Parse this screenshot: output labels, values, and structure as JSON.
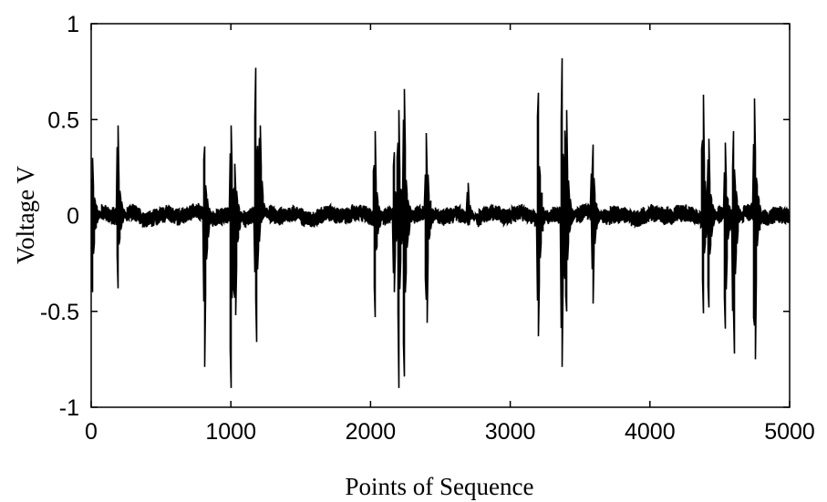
{
  "chart_data": {
    "type": "line",
    "title": "",
    "xlabel": "Points of Sequence",
    "ylabel": "Voltage V",
    "xlim": [
      0,
      5000
    ],
    "ylim": [
      -1,
      1
    ],
    "xticks": [
      0,
      1000,
      2000,
      3000,
      4000,
      5000
    ],
    "yticks": [
      -1,
      -0.5,
      0,
      0.5,
      1
    ],
    "xtick_labels": [
      "0",
      "1000",
      "2000",
      "3000",
      "4000",
      "5000"
    ],
    "ytick_labels": [
      "-1",
      "-0.5",
      "0",
      "0.5",
      "1"
    ],
    "grid": false,
    "noise_amplitude": 0.05,
    "series": [
      {
        "color": "#000000",
        "bursts": [
          {
            "x": 10,
            "peak": 0.3,
            "trough": -0.4
          },
          {
            "x": 190,
            "peak": 0.47,
            "trough": -0.38
          },
          {
            "x": 810,
            "peak": 0.36,
            "trough": -0.79
          },
          {
            "x": 1000,
            "peak": 0.47,
            "trough": -0.9
          },
          {
            "x": 1030,
            "peak": 0.27,
            "trough": -0.52
          },
          {
            "x": 1180,
            "peak": 0.77,
            "trough": -0.66
          },
          {
            "x": 1210,
            "peak": 0.47,
            "trough": -0.05
          },
          {
            "x": 2030,
            "peak": 0.44,
            "trough": -0.53
          },
          {
            "x": 2170,
            "peak": 0.33,
            "trough": -0.4
          },
          {
            "x": 2200,
            "peak": 0.55,
            "trough": -0.9
          },
          {
            "x": 2240,
            "peak": 0.66,
            "trough": -0.84
          },
          {
            "x": 2400,
            "peak": 0.43,
            "trough": -0.56
          },
          {
            "x": 2700,
            "peak": 0.17,
            "trough": -0.05
          },
          {
            "x": 3200,
            "peak": 0.64,
            "trough": -0.63
          },
          {
            "x": 3370,
            "peak": 0.82,
            "trough": -0.79
          },
          {
            "x": 3400,
            "peak": 0.55,
            "trough": -0.5
          },
          {
            "x": 3590,
            "peak": 0.37,
            "trough": -0.46
          },
          {
            "x": 4380,
            "peak": 0.63,
            "trough": -0.51
          },
          {
            "x": 4420,
            "peak": 0.4,
            "trough": -0.48
          },
          {
            "x": 4540,
            "peak": 0.38,
            "trough": -0.59
          },
          {
            "x": 4600,
            "peak": 0.44,
            "trough": -0.72
          },
          {
            "x": 4750,
            "peak": 0.61,
            "trough": -0.75
          }
        ]
      }
    ]
  }
}
